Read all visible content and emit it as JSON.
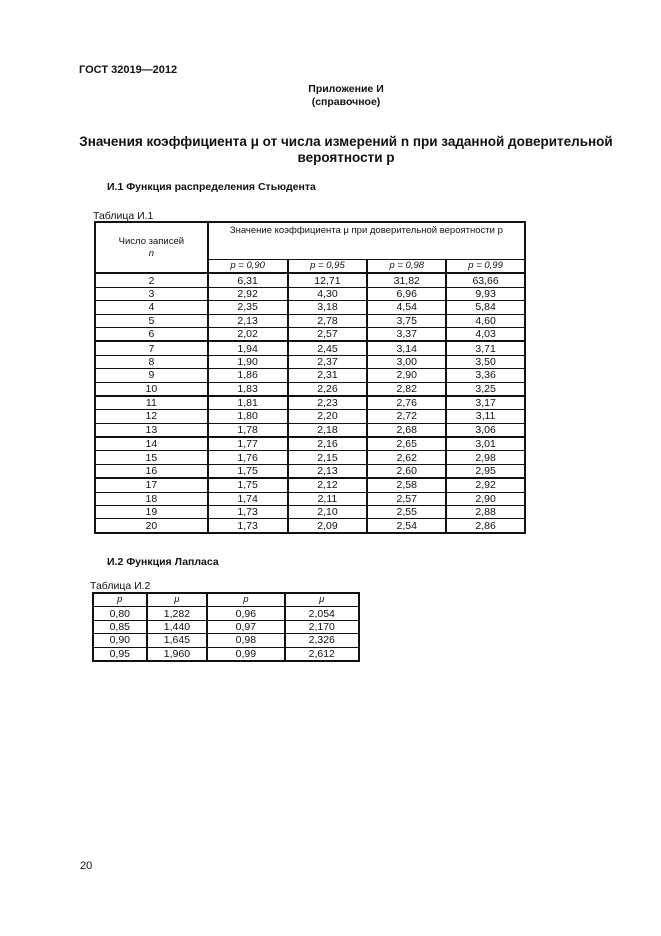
{
  "header": {
    "standard": "ГОСТ 32019—2012"
  },
  "appendix": {
    "title": "Приложение И",
    "subtitle": "(справочное)"
  },
  "heading": {
    "line1_a": "Значения коэффициента ",
    "mu": "μ",
    "line1_b": " от числа измерений n при заданной доверительной",
    "line2": "вероятности р"
  },
  "section1": {
    "title": "И.1 Функция распределения Стьюдента",
    "table_caption": "Таблица И.1",
    "col_n_label": "Число записей",
    "col_n_symbol": "n",
    "group_header": "Значение коэффициента μ при доверительной вероятности  p",
    "p_headers": [
      "p = 0,90",
      "p = 0,95",
      "p = 0,98",
      "p = 0,99"
    ],
    "rows": [
      [
        "2",
        "6,31",
        "12,71",
        "31,82",
        "63,66"
      ],
      [
        "3",
        "2,92",
        "4,30",
        "6,96",
        "9,93"
      ],
      [
        "4",
        "2,35",
        "3,18",
        "4,54",
        "5,84"
      ],
      [
        "5",
        "2,13",
        "2,78",
        "3,75",
        "4,60"
      ],
      [
        "6",
        "2,02",
        "2,57",
        "3,37",
        "4,03"
      ],
      [
        "7",
        "1,94",
        "2,45",
        "3,14",
        "3,71"
      ],
      [
        "8",
        "1,90",
        "2,37",
        "3,00",
        "3,50"
      ],
      [
        "9",
        "1,86",
        "2,31",
        "2,90",
        "3,36"
      ],
      [
        "10",
        "1,83",
        "2,26",
        "2,82",
        "3,25"
      ],
      [
        "11",
        "1,81",
        "2,23",
        "2,76",
        "3,17"
      ],
      [
        "12",
        "1,80",
        "2,20",
        "2,72",
        "3,11"
      ],
      [
        "13",
        "1,78",
        "2,18",
        "2,68",
        "3,06"
      ],
      [
        "14",
        "1,77",
        "2,16",
        "2,65",
        "3,01"
      ],
      [
        "15",
        "1,76",
        "2,15",
        "2,62",
        "2,98"
      ],
      [
        "16",
        "1,75",
        "2,13",
        "2,60",
        "2,95"
      ],
      [
        "17",
        "1,75",
        "2,12",
        "2,58",
        "2,92"
      ],
      [
        "18",
        "1,74",
        "2,11",
        "2,57",
        "2,90"
      ],
      [
        "19",
        "1,73",
        "2,10",
        "2,55",
        "2,88"
      ],
      [
        "20",
        "1,73",
        "2,09",
        "2,54",
        "2,86"
      ]
    ]
  },
  "section2": {
    "title": "И.2 Функция Лапласа",
    "table_caption": "Таблица И.2",
    "headers": [
      "p",
      "μ",
      "p",
      "μ"
    ],
    "rows": [
      [
        "0,80",
        "1,282",
        "0,96",
        "2,054"
      ],
      [
        "0,85",
        "1,440",
        "0,97",
        "2,170"
      ],
      [
        "0,90",
        "1,645",
        "0,98",
        "2,326"
      ],
      [
        "0,95",
        "1,960",
        "0,99",
        "2,612"
      ]
    ]
  },
  "footer": {
    "page_number": "20"
  }
}
